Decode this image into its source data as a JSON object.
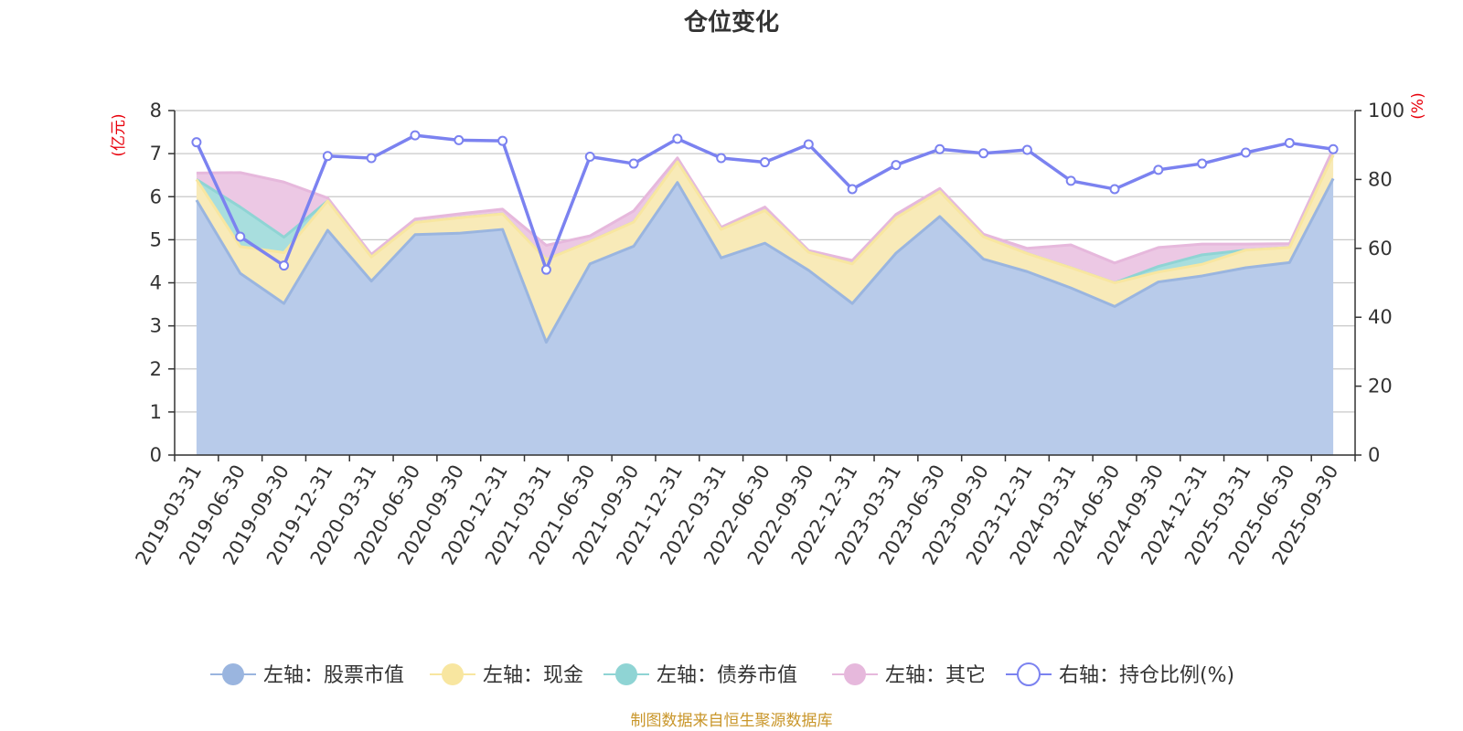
{
  "chart_data": {
    "type": "area",
    "title": "仓位变化",
    "left_axis_unit": "(亿元)",
    "right_axis_unit": "(%)",
    "ylim_left": [
      0,
      8
    ],
    "yticks_left": [
      "0",
      "1",
      "2",
      "3",
      "4",
      "5",
      "6",
      "7",
      "8"
    ],
    "ylim_right": [
      0,
      100
    ],
    "yticks_right": [
      "0",
      "20",
      "40",
      "60",
      "80",
      "100"
    ],
    "categories": [
      "2019-03-31",
      "2019-06-30",
      "2019-09-30",
      "2019-12-31",
      "2020-03-31",
      "2020-06-30",
      "2020-09-30",
      "2020-12-31",
      "2021-03-31",
      "2021-06-30",
      "2021-09-30",
      "2021-12-31",
      "2022-03-31",
      "2022-06-30",
      "2022-09-30",
      "2022-12-31",
      "2023-03-31",
      "2023-06-30",
      "2023-09-30",
      "2023-12-31",
      "2024-03-31",
      "2024-06-30",
      "2024-09-30",
      "2024-12-31",
      "2025-03-31",
      "2025-06-30",
      "2025-09-30"
    ],
    "series": [
      {
        "name": "左轴：股票市值",
        "axis": "left",
        "kind": "stack",
        "color": "#9ab5df",
        "fill": "#b8cbea",
        "values": [
          5.92,
          4.22,
          3.52,
          5.22,
          4.04,
          5.12,
          5.15,
          5.24,
          2.62,
          4.44,
          4.85,
          6.33,
          4.58,
          4.92,
          4.29,
          3.52,
          4.69,
          5.54,
          4.55,
          4.26,
          3.88,
          3.45,
          4.02,
          4.16,
          4.35,
          4.47,
          6.42
        ]
      },
      {
        "name": "左轴：现金",
        "axis": "left",
        "kind": "stack",
        "color": "#f8e6a0",
        "fill": "#f8eab8",
        "values": [
          0.48,
          0.62,
          1.18,
          0.68,
          0.56,
          0.28,
          0.36,
          0.36,
          1.92,
          0.52,
          0.56,
          0.48,
          0.66,
          0.76,
          0.42,
          0.92,
          0.82,
          0.58,
          0.52,
          0.42,
          0.47,
          0.55,
          0.23,
          0.27,
          0.41,
          0.35,
          0.55
        ]
      },
      {
        "name": "左轴：债券市值",
        "axis": "left",
        "kind": "stack",
        "color": "#8fd4d4",
        "fill": "#a8dede",
        "values": [
          0,
          0.92,
          0.36,
          0,
          0,
          0,
          0,
          0,
          0,
          0,
          0,
          0,
          0,
          0,
          0,
          0,
          0,
          0,
          0,
          0,
          0,
          0,
          0.13,
          0.22,
          0,
          0,
          0
        ]
      },
      {
        "name": "左轴：其它",
        "axis": "left",
        "kind": "stack",
        "color": "#e6b8dc",
        "fill": "#ecc8e4",
        "values": [
          0.15,
          0.8,
          1.28,
          0.07,
          0.06,
          0.08,
          0.09,
          0.11,
          0.33,
          0.13,
          0.26,
          0.09,
          0.05,
          0.08,
          0.04,
          0.08,
          0.08,
          0.07,
          0.06,
          0.12,
          0.53,
          0.46,
          0.44,
          0.25,
          0.14,
          0.09,
          0.14
        ]
      },
      {
        "name": "右轴：持仓比例(%)",
        "axis": "right",
        "kind": "line",
        "color": "#7b82f0",
        "values": [
          90.8,
          63.4,
          55.0,
          86.8,
          86.2,
          92.8,
          91.4,
          91.2,
          53.8,
          86.6,
          84.6,
          91.8,
          86.2,
          85.0,
          90.2,
          77.2,
          84.2,
          88.8,
          87.6,
          88.6,
          79.6,
          77.2,
          82.8,
          84.6,
          87.8,
          90.6,
          88.8
        ]
      }
    ],
    "legend_position": "bottom-center",
    "source_note": "制图数据来自恒生聚源数据库"
  }
}
